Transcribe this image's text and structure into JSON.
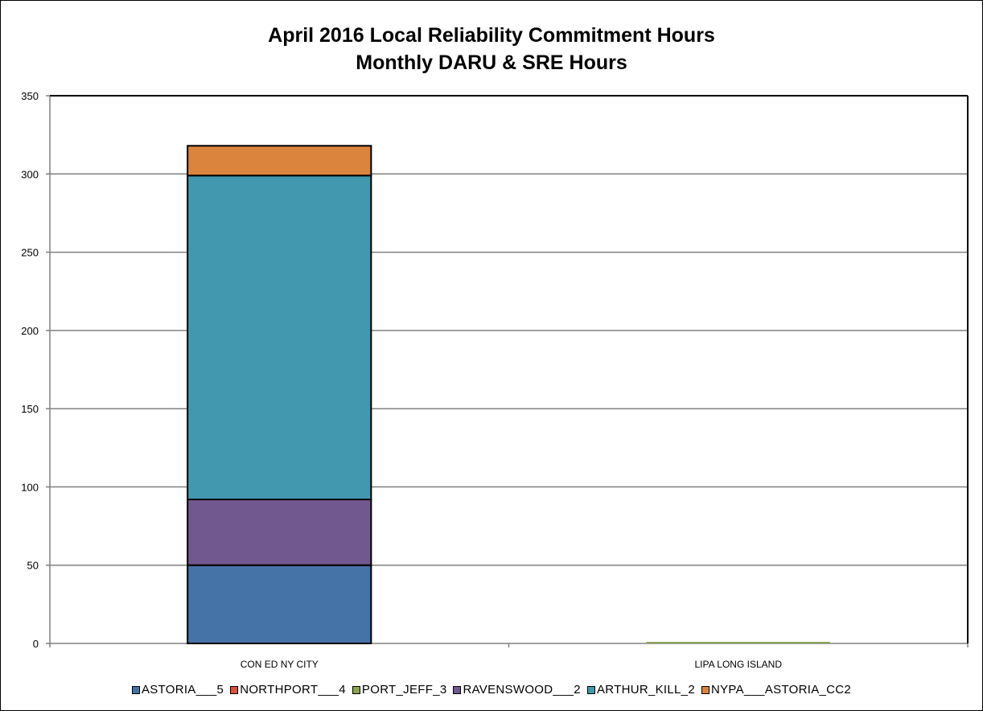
{
  "chart_data": {
    "type": "bar",
    "stacked": true,
    "title": "April 2016 Local Reliability Commitment Hours",
    "subtitle": "Monthly DARU & SRE Hours",
    "xlabel": "",
    "ylabel": "",
    "categories": [
      "CON ED NY CITY",
      "LIPA LONG ISLAND"
    ],
    "ylim": [
      0,
      350
    ],
    "yticks": [
      0,
      50,
      100,
      150,
      200,
      250,
      300,
      350
    ],
    "grid": true,
    "legend_position": "bottom",
    "series": [
      {
        "name": "ASTORIA___5",
        "color": "#4572a7",
        "values": [
          50,
          0
        ]
      },
      {
        "name": "NORTHPORT___4",
        "color": "#d7533e",
        "values": [
          0,
          0
        ]
      },
      {
        "name": "PORT_JEFF_3",
        "color": "#89a54e",
        "values": [
          0,
          1
        ]
      },
      {
        "name": "RAVENSWOOD___2",
        "color": "#71588f",
        "values": [
          42,
          0
        ]
      },
      {
        "name": "ARTHUR_KILL_2",
        "color": "#4198af",
        "values": [
          207,
          0
        ]
      },
      {
        "name": "NYPA___ASTORIA_CC2",
        "color": "#db843d",
        "values": [
          19,
          0
        ]
      }
    ]
  }
}
